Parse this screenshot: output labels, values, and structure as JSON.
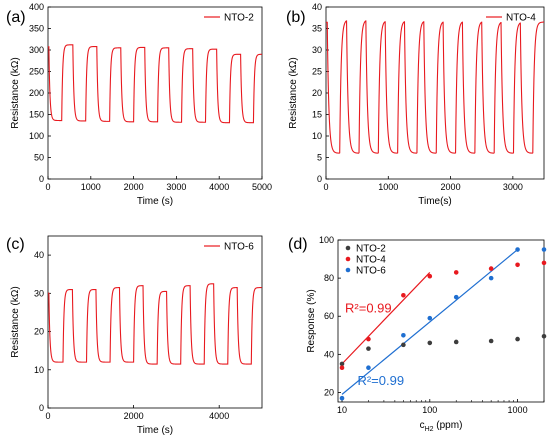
{
  "chart_data": [
    {
      "panel": "(a)",
      "type": "line",
      "xlabel": "Time (s)",
      "ylabel": "Resistance (kΩ)",
      "xlim": [
        0,
        5000
      ],
      "ylim": [
        0,
        400
      ],
      "xticks": [
        0,
        1000,
        2000,
        3000,
        4000,
        5000
      ],
      "yticks": [
        0,
        50,
        100,
        150,
        200,
        250,
        300,
        350,
        400
      ],
      "legend": "top-right",
      "series": [
        {
          "name": "NTO-2",
          "color": "#e8191f",
          "cycles": {
            "start": 20,
            "period": 560,
            "count": 9,
            "on_duration": 300,
            "high": [
              312,
              312,
              308,
              305,
              306,
              305,
              303,
              302,
              290
            ],
            "low": [
              136,
              135,
              134,
              133,
              133,
              132,
              132,
              131,
              131
            ]
          }
        }
      ]
    },
    {
      "panel": "(b)",
      "type": "line",
      "xlabel": "Time(s)",
      "ylabel": "Resistance (kΩ)",
      "xlim": [
        0,
        3500
      ],
      "ylim": [
        0,
        40
      ],
      "xticks": [
        0,
        1000,
        2000,
        3000
      ],
      "yticks": [
        0,
        5,
        10,
        15,
        20,
        25,
        30,
        35,
        40
      ],
      "legend": "top-right",
      "series": [
        {
          "name": "NTO-4",
          "color": "#e8191f",
          "cycles": {
            "start": 20,
            "period": 310,
            "count": 11,
            "on_duration": 200,
            "high": [
              37,
              37,
              37,
              36.8,
              36.8,
              36.8,
              36.7,
              36.7,
              36.7,
              36.6,
              36.5
            ],
            "low": [
              6,
              6,
              6,
              6,
              6,
              6,
              6,
              6,
              6,
              6,
              6
            ]
          }
        }
      ]
    },
    {
      "panel": "(c)",
      "type": "line",
      "xlabel": "Time (s)",
      "ylabel": "Resistance (kΩ)",
      "xlim": [
        0,
        5000
      ],
      "ylim": [
        0,
        45
      ],
      "xticks": [
        0,
        2000,
        4000
      ],
      "yticks": [
        0,
        10,
        20,
        30,
        40
      ],
      "legend": "top-right",
      "series": [
        {
          "name": "NTO-6",
          "color": "#e8191f",
          "cycles": {
            "start": 20,
            "period": 550,
            "count": 9,
            "on_duration": 330,
            "high": [
              30.5,
              31,
              31,
              31.5,
              32,
              30.5,
              32,
              32.5,
              31.5
            ],
            "low": [
              12,
              12,
              12,
              12,
              11.5,
              11.5,
              11.5,
              11.5,
              11.5
            ]
          }
        }
      ]
    },
    {
      "panel": "(d)",
      "type": "scatter",
      "xlabel_main": "c",
      "xlabel_sub": "H2",
      "xlabel_unit": " (ppm)",
      "ylabel": "Response (%)",
      "xscale": "log",
      "xlim": [
        9,
        2000
      ],
      "ylim": [
        15,
        100
      ],
      "xticks": [
        10,
        100,
        1000
      ],
      "yticks": [
        20,
        40,
        60,
        80,
        100
      ],
      "legend": "top-left",
      "series": [
        {
          "name": "NTO-2",
          "color": "#3d3d3d",
          "x": [
            10,
            20,
            50,
            100,
            200,
            500,
            1000,
            2000
          ],
          "y": [
            35,
            43,
            45,
            46,
            46.5,
            47,
            48,
            49.5
          ]
        },
        {
          "name": "NTO-4",
          "color": "#e8191f",
          "x": [
            10,
            20,
            50,
            100,
            200,
            500,
            1000,
            2000
          ],
          "y": [
            33,
            48,
            71,
            81,
            83,
            85,
            87,
            88
          ]
        },
        {
          "name": "NTO-6",
          "color": "#1f6fd1",
          "x": [
            10,
            20,
            50,
            100,
            200,
            500,
            1000,
            2000
          ],
          "y": [
            17,
            33,
            50,
            59,
            70,
            80,
            95,
            95
          ]
        }
      ],
      "fits": [
        {
          "color": "#e8191f",
          "x": [
            10,
            100
          ],
          "y": [
            35,
            83
          ],
          "label": "R²=0.99"
        },
        {
          "color": "#1f6fd1",
          "x": [
            10,
            1000
          ],
          "y": [
            19,
            95
          ],
          "label": "R²=0.99"
        }
      ]
    }
  ]
}
